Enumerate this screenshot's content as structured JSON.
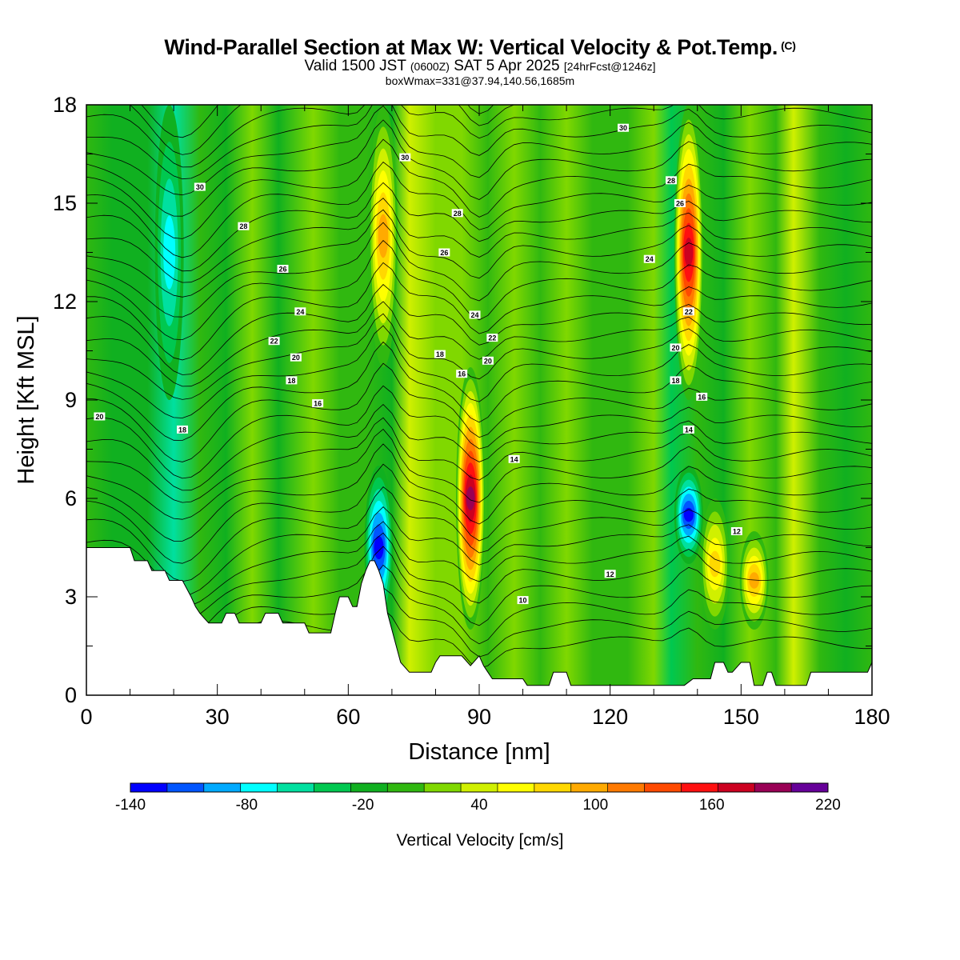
{
  "header": {
    "title": "Wind-Parallel Section at Max W: Vertical Velocity & Pot.Temp.",
    "title_units": "(C)",
    "subtitle_a": "Valid 1500 JST",
    "subtitle_b": "(0600Z)",
    "subtitle_c": "SAT 5 Apr 2025",
    "subtitle_d": "[24hrFcst@1246z]",
    "info": "boxWmax=331@37.94,140.56,1685m"
  },
  "chart_data": {
    "type": "heatmap",
    "title": "Wind-Parallel Section at Max W: Vertical Velocity & Pot.Temp.",
    "xlabel": "Distance [nm]",
    "ylabel": "Height [Kft MSL]",
    "xlim": [
      0,
      180
    ],
    "ylim": [
      0,
      18
    ],
    "x_ticks": [
      "0",
      "30",
      "60",
      "90",
      "120",
      "150",
      "180"
    ],
    "y_ticks": [
      "0",
      "3",
      "6",
      "9",
      "12",
      "15",
      "18"
    ],
    "colorbar": {
      "label": "Vertical Velocity [cm/s]",
      "range": [
        -140,
        220
      ],
      "step": 20,
      "tick_labels": [
        "-140",
        "-80",
        "-20",
        "40",
        "100",
        "160",
        "220"
      ],
      "colors": [
        "#0000ff",
        "#0055ff",
        "#00aaff",
        "#00ffff",
        "#00e0a0",
        "#00c850",
        "#10b020",
        "#30b810",
        "#80d800",
        "#d0f000",
        "#ffff00",
        "#ffd800",
        "#ffaa00",
        "#ff7a00",
        "#ff4a00",
        "#ff1010",
        "#cc0020",
        "#990055",
        "#660099"
      ]
    },
    "vertical_velocity_features": [
      {
        "x": 19,
        "z_range": [
          9,
          18
        ],
        "w": -70
      },
      {
        "x": 67,
        "z_range": [
          2,
          7
        ],
        "w": -135
      },
      {
        "x": 68,
        "z_range": [
          10,
          18
        ],
        "w": 100
      },
      {
        "x": 88,
        "z_range": [
          2,
          10
        ],
        "w": 210
      },
      {
        "x": 138,
        "z_range": [
          4,
          7
        ],
        "w": -125
      },
      {
        "x": 138,
        "z_range": [
          9,
          18
        ],
        "w": 180
      },
      {
        "x": 144,
        "z_range": [
          2,
          6
        ],
        "w": 95
      },
      {
        "x": 153,
        "z_range": [
          2,
          5
        ],
        "w": 100
      }
    ],
    "potential_temperature_labels": [
      {
        "x": 3,
        "y": 8.5,
        "value": "20"
      },
      {
        "x": 22,
        "y": 8.1,
        "value": "18"
      },
      {
        "x": 26,
        "y": 15.5,
        "value": "30"
      },
      {
        "x": 36,
        "y": 14.3,
        "value": "28"
      },
      {
        "x": 45,
        "y": 13.0,
        "value": "26"
      },
      {
        "x": 49,
        "y": 11.7,
        "value": "24"
      },
      {
        "x": 43,
        "y": 10.8,
        "value": "22"
      },
      {
        "x": 48,
        "y": 10.3,
        "value": "20"
      },
      {
        "x": 47,
        "y": 9.6,
        "value": "18"
      },
      {
        "x": 53,
        "y": 8.9,
        "value": "16"
      },
      {
        "x": 73,
        "y": 16.4,
        "value": "30"
      },
      {
        "x": 85,
        "y": 14.7,
        "value": "28"
      },
      {
        "x": 82,
        "y": 13.5,
        "value": "26"
      },
      {
        "x": 89,
        "y": 11.6,
        "value": "24"
      },
      {
        "x": 93,
        "y": 10.9,
        "value": "22"
      },
      {
        "x": 92,
        "y": 10.2,
        "value": "20"
      },
      {
        "x": 81,
        "y": 10.4,
        "value": "18"
      },
      {
        "x": 86,
        "y": 9.8,
        "value": "16"
      },
      {
        "x": 98,
        "y": 7.2,
        "value": "14"
      },
      {
        "x": 120,
        "y": 3.7,
        "value": "12"
      },
      {
        "x": 100,
        "y": 2.9,
        "value": "10"
      },
      {
        "x": 123,
        "y": 17.3,
        "value": "30"
      },
      {
        "x": 134,
        "y": 15.7,
        "value": "28"
      },
      {
        "x": 136,
        "y": 15.0,
        "value": "26"
      },
      {
        "x": 129,
        "y": 13.3,
        "value": "24"
      },
      {
        "x": 138,
        "y": 11.7,
        "value": "22"
      },
      {
        "x": 135,
        "y": 10.6,
        "value": "20"
      },
      {
        "x": 135,
        "y": 9.6,
        "value": "18"
      },
      {
        "x": 141,
        "y": 9.1,
        "value": "16"
      },
      {
        "x": 138,
        "y": 8.1,
        "value": "14"
      },
      {
        "x": 149,
        "y": 5.0,
        "value": "12"
      }
    ],
    "terrain_kft": [
      [
        0,
        4.5
      ],
      [
        5,
        4.5
      ],
      [
        10,
        4.5
      ],
      [
        11,
        4.1
      ],
      [
        14,
        4.1
      ],
      [
        15,
        3.8
      ],
      [
        18,
        3.8
      ],
      [
        19,
        3.5
      ],
      [
        22,
        3.5
      ],
      [
        24,
        3.0
      ],
      [
        25,
        2.7
      ],
      [
        26,
        2.5
      ],
      [
        28,
        2.2
      ],
      [
        31,
        2.2
      ],
      [
        32,
        2.5
      ],
      [
        34,
        2.5
      ],
      [
        35,
        2.2
      ],
      [
        40,
        2.2
      ],
      [
        41,
        2.5
      ],
      [
        44,
        2.5
      ],
      [
        45,
        2.2
      ],
      [
        50,
        2.2
      ],
      [
        51,
        1.9
      ],
      [
        56,
        1.9
      ],
      [
        57,
        2.5
      ],
      [
        58,
        3.0
      ],
      [
        60,
        3.0
      ],
      [
        61,
        2.7
      ],
      [
        62,
        2.7
      ],
      [
        63,
        3.4
      ],
      [
        64,
        3.8
      ],
      [
        65,
        4.1
      ],
      [
        66,
        4.1
      ],
      [
        67,
        3.8
      ],
      [
        68,
        3.4
      ],
      [
        69,
        2.5
      ],
      [
        71,
        1.5
      ],
      [
        72,
        1.0
      ],
      [
        74,
        0.7
      ],
      [
        79,
        0.7
      ],
      [
        80,
        1.0
      ],
      [
        81,
        1.2
      ],
      [
        86,
        1.2
      ],
      [
        88,
        0.9
      ],
      [
        90,
        1.2
      ],
      [
        91,
        0.9
      ],
      [
        92,
        0.7
      ],
      [
        93,
        0.5
      ],
      [
        100,
        0.5
      ],
      [
        101,
        0.3
      ],
      [
        106,
        0.3
      ],
      [
        107,
        0.7
      ],
      [
        110,
        0.7
      ],
      [
        111,
        0.3
      ],
      [
        137,
        0.3
      ],
      [
        139,
        0.5
      ],
      [
        143,
        0.5
      ],
      [
        144,
        1.0
      ],
      [
        146,
        1.0
      ],
      [
        147,
        0.7
      ],
      [
        148,
        0.7
      ],
      [
        150,
        1.0
      ],
      [
        152,
        1.0
      ],
      [
        153,
        0.3
      ],
      [
        155,
        0.3
      ],
      [
        156,
        0.7
      ],
      [
        157,
        0.7
      ],
      [
        158,
        0.3
      ],
      [
        165,
        0.3
      ],
      [
        166,
        0.7
      ],
      [
        179,
        0.7
      ],
      [
        180,
        1.0
      ]
    ]
  }
}
